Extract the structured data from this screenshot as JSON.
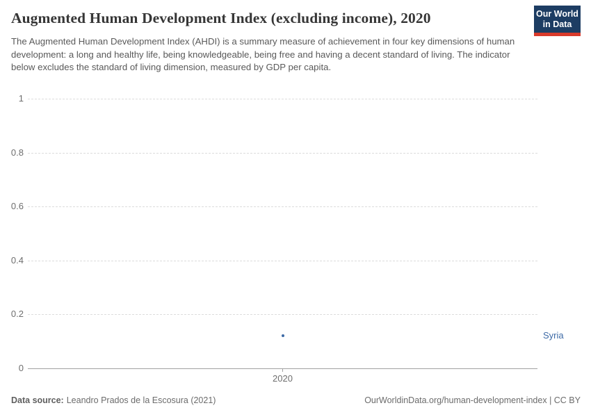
{
  "header": {
    "title": "Augmented Human Development Index (excluding income), 2020",
    "subtitle": "The Augmented Human Development Index (AHDI) is a summary measure of achievement in four key dimensions of human development: a long and healthy life, being knowledgeable, being free and having a decent standard of living. The indicator below excludes the standard of living dimension, measured by GDP per capita.",
    "logo": {
      "line1": "Our World",
      "line2": "in Data"
    }
  },
  "chart_data": {
    "type": "scatter",
    "title": "Augmented Human Development Index (excluding income), 2020",
    "categories": [
      "2020"
    ],
    "series": [
      {
        "name": "Syria",
        "x": "2020",
        "value": 0.12
      }
    ],
    "xlabel": "",
    "ylabel": "",
    "ylim": [
      0,
      1
    ],
    "yticks": [
      0,
      0.2,
      0.4,
      0.6,
      0.8,
      1
    ],
    "grid": "horizontal-dashed",
    "legend_position": "right-of-point",
    "point_color": "#3d6aa6",
    "entity_label_color": "#3d6aa6"
  },
  "footer": {
    "source_label": "Data source:",
    "source_value": "Leandro Prados de la Escosura (2021)",
    "credit": "OurWorldinData.org/human-development-index | CC BY"
  },
  "colors": {
    "logo_bg": "#1d3d63",
    "logo_underline": "#d93a2b",
    "gridline": "#dcdcdc",
    "axis": "#a1a1a1",
    "tick_text": "#6e6e6e",
    "title_text": "#363636",
    "subtitle_text": "#595959"
  }
}
